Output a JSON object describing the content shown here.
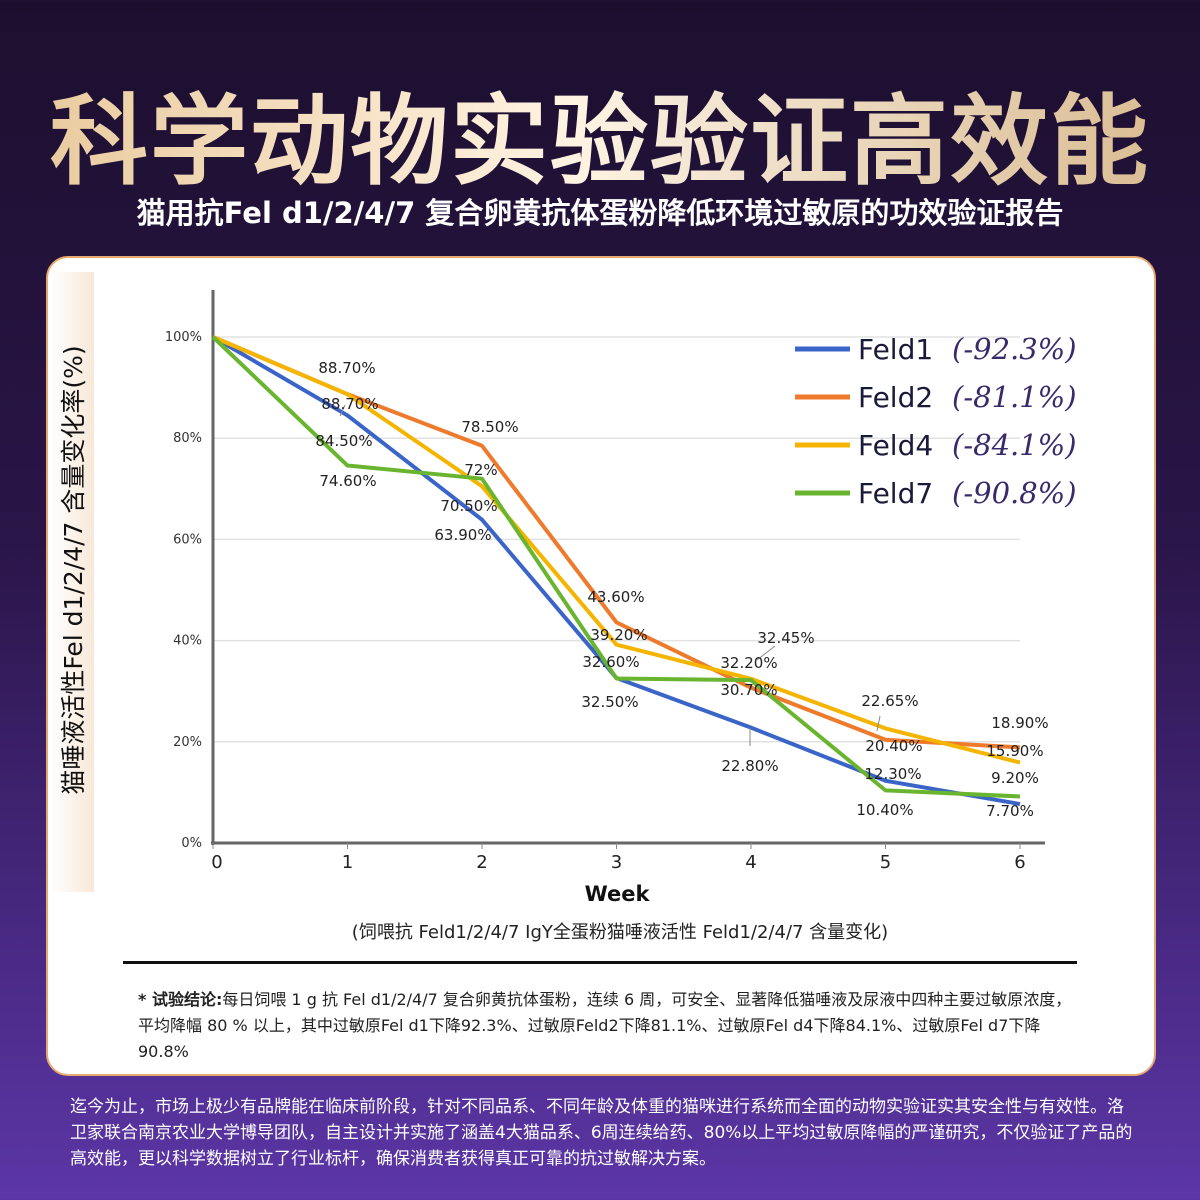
{
  "header": {
    "title": "科学动物实验验证高效能",
    "subtitle": "猫用抗Fel d1/2/4/7 复合卵黄抗体蛋粉降低环境过敏原的功效验证报告"
  },
  "chart_data": {
    "type": "line",
    "xlabel": "Week",
    "ylabel": "猫唾液活性Fel d1/2/4/7 含量变化率(%)",
    "caption": "(饲喂抗 Feld1/2/4/7  IgY全蛋粉猫唾液活性 Feld1/2/4/7  含量变化)",
    "x": [
      0,
      1,
      2,
      3,
      4,
      5,
      6
    ],
    "x_tick_labels": [
      "0",
      "1",
      "2",
      "3",
      "4",
      "5",
      "6"
    ],
    "ylim": [
      0,
      100
    ],
    "y_tick_labels": [
      "0%",
      "20%",
      "40%",
      "60%",
      "80%",
      "100%"
    ],
    "grid": true,
    "legend_position": "top-right",
    "series": [
      {
        "name": "Feld1",
        "change": "(-92.3%)",
        "color": "#3a64c8",
        "values": [
          100,
          84.5,
          63.9,
          32.6,
          22.8,
          12.3,
          7.7
        ],
        "labels": [
          "",
          "84.50%",
          "63.90%",
          "32.60%",
          "22.80%",
          "12.30%",
          "7.70%"
        ]
      },
      {
        "name": "Feld2",
        "change": "(-81.1%)",
        "color": "#ee7a2c",
        "values": [
          100,
          88.7,
          78.5,
          43.6,
          30.7,
          20.4,
          18.9
        ],
        "labels": [
          "",
          "88.70%",
          "78.50%",
          "43.60%",
          "30.70%",
          "20.40%",
          "18.90%"
        ]
      },
      {
        "name": "Feld4",
        "change": "(-84.1%)",
        "color": "#f4b400",
        "values": [
          100,
          88.7,
          70.5,
          39.2,
          32.45,
          22.65,
          15.9
        ],
        "labels": [
          "",
          "88.70%",
          "70.50%",
          "39.20%",
          "32.45%",
          "22.65%",
          "15.90%"
        ]
      },
      {
        "name": "Feld7",
        "change": "(-90.8%)",
        "color": "#6ab530",
        "values": [
          100,
          74.6,
          72,
          32.5,
          32.2,
          10.4,
          9.2
        ],
        "labels": [
          "",
          "74.60%",
          "72%",
          "32.50%",
          "32.20%",
          "10.40%",
          "9.20%"
        ]
      }
    ]
  },
  "conclusion": {
    "label": "* 试验结论:",
    "text": "每日饲喂 1 g 抗 Fel d1/2/4/7 复合卵黄抗体蛋粉，连续 6 周，可安全、显著降低猫唾液及尿液中四种主要过敏原浓度，平均降幅 80 % 以上，其中过敏原Fel d1下降92.3%、过敏原Feld2下降81.1%、过敏原Fel d4下降84.1%、过敏原Fel d7下降90.8%"
  },
  "footer": {
    "text": "迄今为止，市场上极少有品牌能在临床前阶段，针对不同品系、不同年龄及体重的猫咪进行系统而全面的动物实验证实其安全性与有效性。洛卫家联合南京农业大学博导团队，自主设计并实施了涵盖4大猫品系、6周连续给药、80%以上平均过敏原降幅的严谨研究，不仅验证了产品的高效能，更以科学数据树立了行业标杆，确保消费者获得真正可靠的抗过敏解决方案。"
  }
}
